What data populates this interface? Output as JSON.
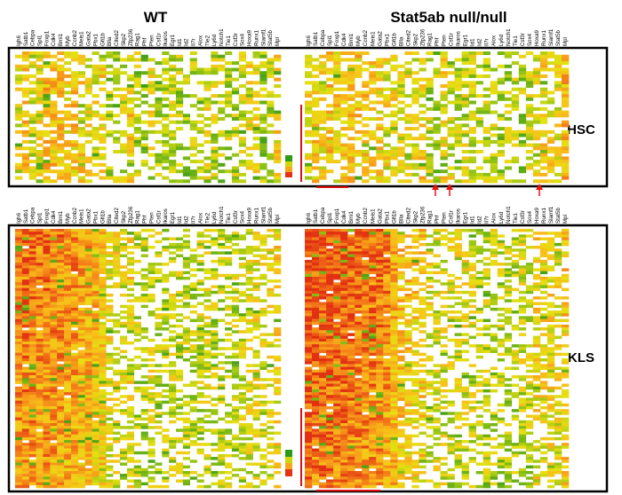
{
  "chart_data": {
    "type": "heatmap",
    "title_wt": "WT",
    "title_ko": "Stat5ab null/null",
    "panel_hsc_label": "HSC",
    "panel_kls_label": "KLS",
    "wt_genes": [
      "Igh6",
      "Satb1",
      "Cebpa",
      "Spi1",
      "Foxp1",
      "Cdk4",
      "Bmi1",
      "Myb",
      "Ccnb2",
      "Meis1",
      "Gata2",
      "Pbx1",
      "Gfi1b",
      "Blla",
      "Cited2",
      "Skp2",
      "Zfp236",
      "Rag1",
      "Phf",
      "Pten",
      "Csf1r",
      "Ikaros",
      "Egr1",
      "Id1",
      "Id2",
      "Il7r",
      "Alox",
      "Tle2",
      "Ly6d",
      "Notch1",
      "Tie1",
      "Csf3r",
      "Sox4",
      "Hoxa9",
      "Runx1",
      "Slamf1",
      "Stat5b",
      "Mpl"
    ],
    "ko_genes": [
      "Igh6",
      "Satb1",
      "Cebpa",
      "Spi1",
      "Foxp1",
      "Cdk4",
      "Bmi1",
      "Myb",
      "Ccnb2",
      "Meis1",
      "Gata2",
      "Pbx1",
      "Gfi1b",
      "Blla",
      "Cited2",
      "Skp2",
      "Zfp236",
      "Rag1",
      "Phf",
      "Pten",
      "Csf1r",
      "Ikaros",
      "Egr1",
      "Id1",
      "Id2",
      "Il7r",
      "Alox",
      "Ly6d",
      "Notch1",
      "Tie1",
      "Csf3r",
      "Sox4",
      "Hoxa9",
      "Runx1",
      "Slamf1",
      "Stat5b",
      "Mpl"
    ],
    "hsc_rows": 40,
    "kls_rows": 92,
    "value_scale": "low = green, mid = yellow, high = red (relative expression, 0-1)",
    "hsc_column_mean_expression": {
      "wt": [
        0.4,
        0.55,
        0.4,
        0.45,
        0.6,
        0.55,
        0.55,
        0.5,
        0.55,
        0.5,
        0.45,
        0.45,
        0.5,
        0.25,
        0.35,
        0.35,
        0.5,
        0.3,
        0.25,
        0.45,
        0.25,
        0.25,
        0.35,
        0.3,
        0.25,
        0.3,
        0.3,
        0.4,
        0.35,
        0.3,
        0.3,
        0.3,
        0.35,
        0.45,
        0.4,
        0.25,
        0.35,
        0.5
      ],
      "ko": [
        0.45,
        0.55,
        0.5,
        0.55,
        0.5,
        0.5,
        0.6,
        0.55,
        0.55,
        0.5,
        0.5,
        0.45,
        0.5,
        0.4,
        0.4,
        0.45,
        0.5,
        0.35,
        0.3,
        0.45,
        0.4,
        0.3,
        0.4,
        0.35,
        0.3,
        0.35,
        0.35,
        0.3,
        0.3,
        0.3,
        0.3,
        0.35,
        0.45,
        0.5,
        0.45,
        0.4,
        0.6
      ]
    },
    "kls_column_mean_expression": {
      "wt": [
        0.7,
        0.7,
        0.7,
        0.65,
        0.7,
        0.65,
        0.65,
        0.6,
        0.6,
        0.55,
        0.55,
        0.5,
        0.5,
        0.4,
        0.4,
        0.35,
        0.45,
        0.3,
        0.3,
        0.4,
        0.3,
        0.3,
        0.35,
        0.3,
        0.3,
        0.3,
        0.3,
        0.35,
        0.3,
        0.3,
        0.3,
        0.3,
        0.35,
        0.4,
        0.4,
        0.35,
        0.4,
        0.45
      ],
      "ko": [
        0.85,
        0.8,
        0.8,
        0.8,
        0.78,
        0.78,
        0.75,
        0.72,
        0.72,
        0.7,
        0.7,
        0.65,
        0.6,
        0.55,
        0.5,
        0.5,
        0.5,
        0.4,
        0.35,
        0.4,
        0.35,
        0.35,
        0.4,
        0.35,
        0.3,
        0.3,
        0.3,
        0.3,
        0.3,
        0.3,
        0.35,
        0.35,
        0.45,
        0.45,
        0.45,
        0.4,
        0.5
      ]
    },
    "hsc_highlight_arrow_genes": [
      "Pten",
      "Ikaros",
      "Hoxa9"
    ],
    "highlighted_gene_range_underlined": "Satb1–Myb",
    "legend": [
      "high (red)",
      "mid (yellow)",
      "low (green)"
    ]
  }
}
